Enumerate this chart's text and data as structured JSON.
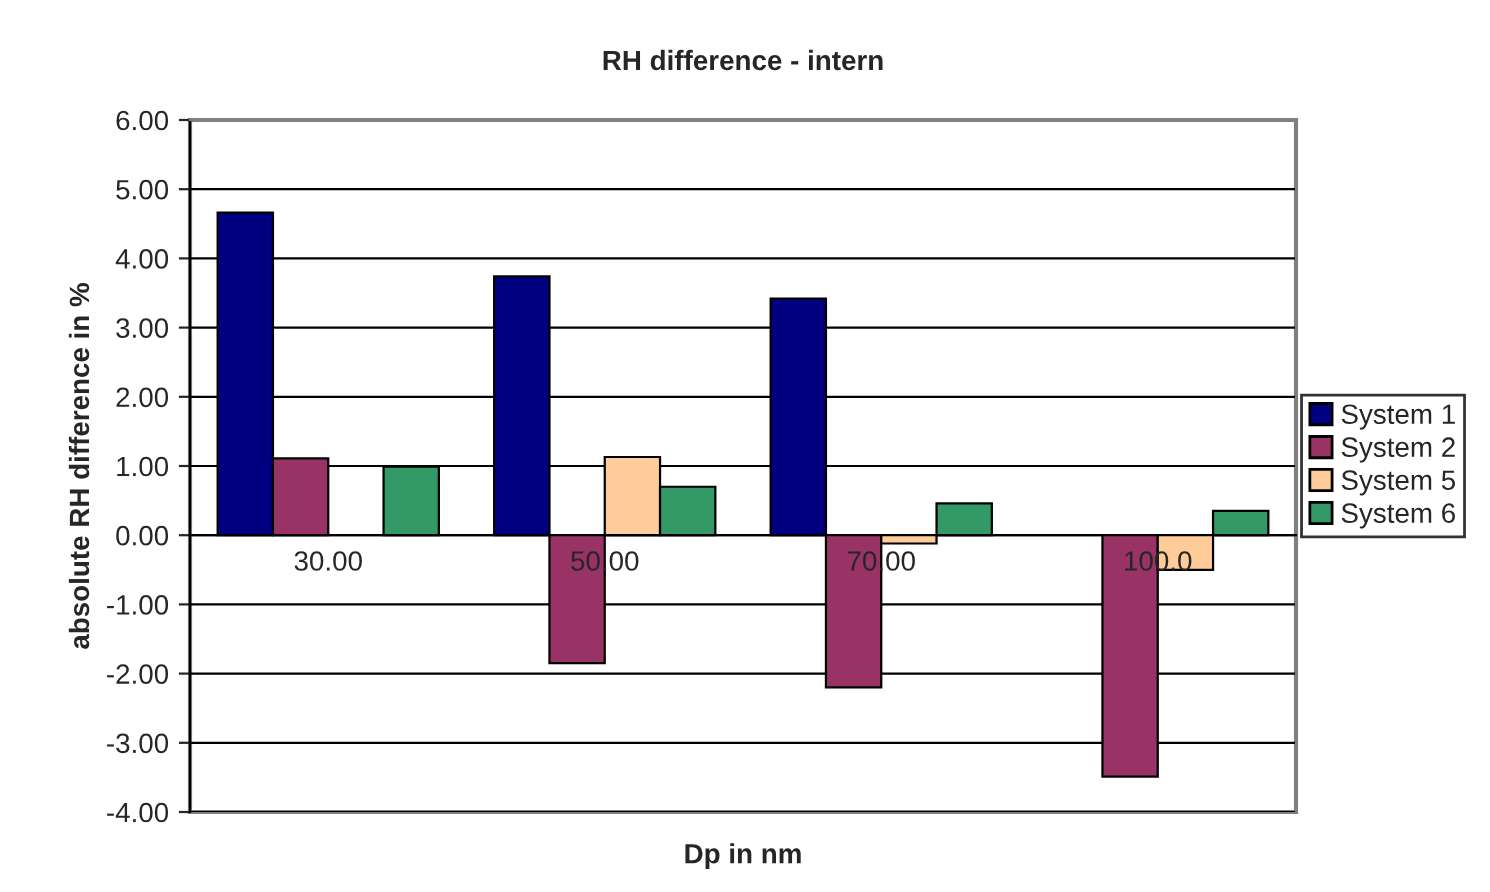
{
  "chart_data": {
    "type": "bar",
    "title": "RH difference - intern",
    "xlabel": "Dp in nm",
    "ylabel": "absolute RH difference in %",
    "categories": [
      "30.00",
      "50.00",
      "70.00",
      "100.0"
    ],
    "series": [
      {
        "name": "System 1",
        "color": "#000080",
        "values": [
          4.66,
          3.74,
          3.42,
          null
        ]
      },
      {
        "name": "System 2",
        "color": "#993366",
        "values": [
          1.11,
          -1.85,
          -2.2,
          -3.49
        ]
      },
      {
        "name": "System 5",
        "color": "#ffcc99",
        "values": [
          null,
          1.13,
          -0.12,
          -0.5
        ]
      },
      {
        "name": "System 6",
        "color": "#339966",
        "values": [
          0.99,
          0.7,
          0.46,
          0.35
        ]
      }
    ],
    "ylim": [
      -4,
      6
    ],
    "yticks": [
      {
        "value": -4,
        "label": "-4.00"
      },
      {
        "value": -3,
        "label": "-3.00"
      },
      {
        "value": -2,
        "label": "-2.00"
      },
      {
        "value": -1,
        "label": "-1.00"
      },
      {
        "value": 0,
        "label": "0.00"
      },
      {
        "value": 1,
        "label": "1.00"
      },
      {
        "value": 2,
        "label": "2.00"
      },
      {
        "value": 3,
        "label": "3.00"
      },
      {
        "value": 4,
        "label": "4.00"
      },
      {
        "value": 5,
        "label": "5.00"
      },
      {
        "value": 6,
        "label": "6.00"
      }
    ],
    "grid": "y",
    "legend": "right"
  }
}
